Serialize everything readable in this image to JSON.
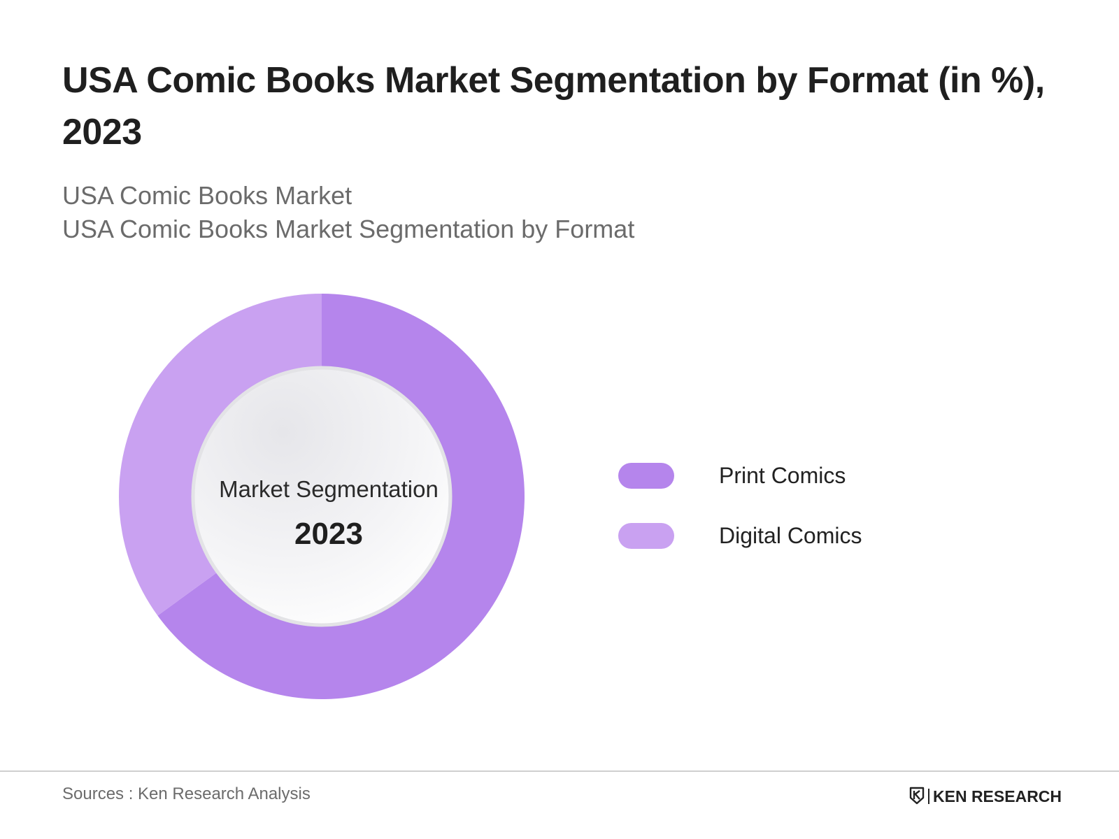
{
  "header": {
    "title": "USA Comic Books Market Segmentation by Format (in %), 2023",
    "subtitle_line1": "USA Comic Books Market",
    "subtitle_line2": "USA Comic Books Market Segmentation by Format"
  },
  "chart_data": {
    "type": "pie",
    "style": "donut",
    "center_label": "Market Segmentation",
    "center_value": "2023",
    "categories": [
      "Print Comics",
      "Digital Comics"
    ],
    "values": [
      65,
      35
    ],
    "colors": [
      "#b585ec",
      "#c9a1f1"
    ],
    "legend_position": "right"
  },
  "footer": {
    "sources": "Sources : Ken Research Analysis",
    "brand": "KEN RESEARCH"
  }
}
